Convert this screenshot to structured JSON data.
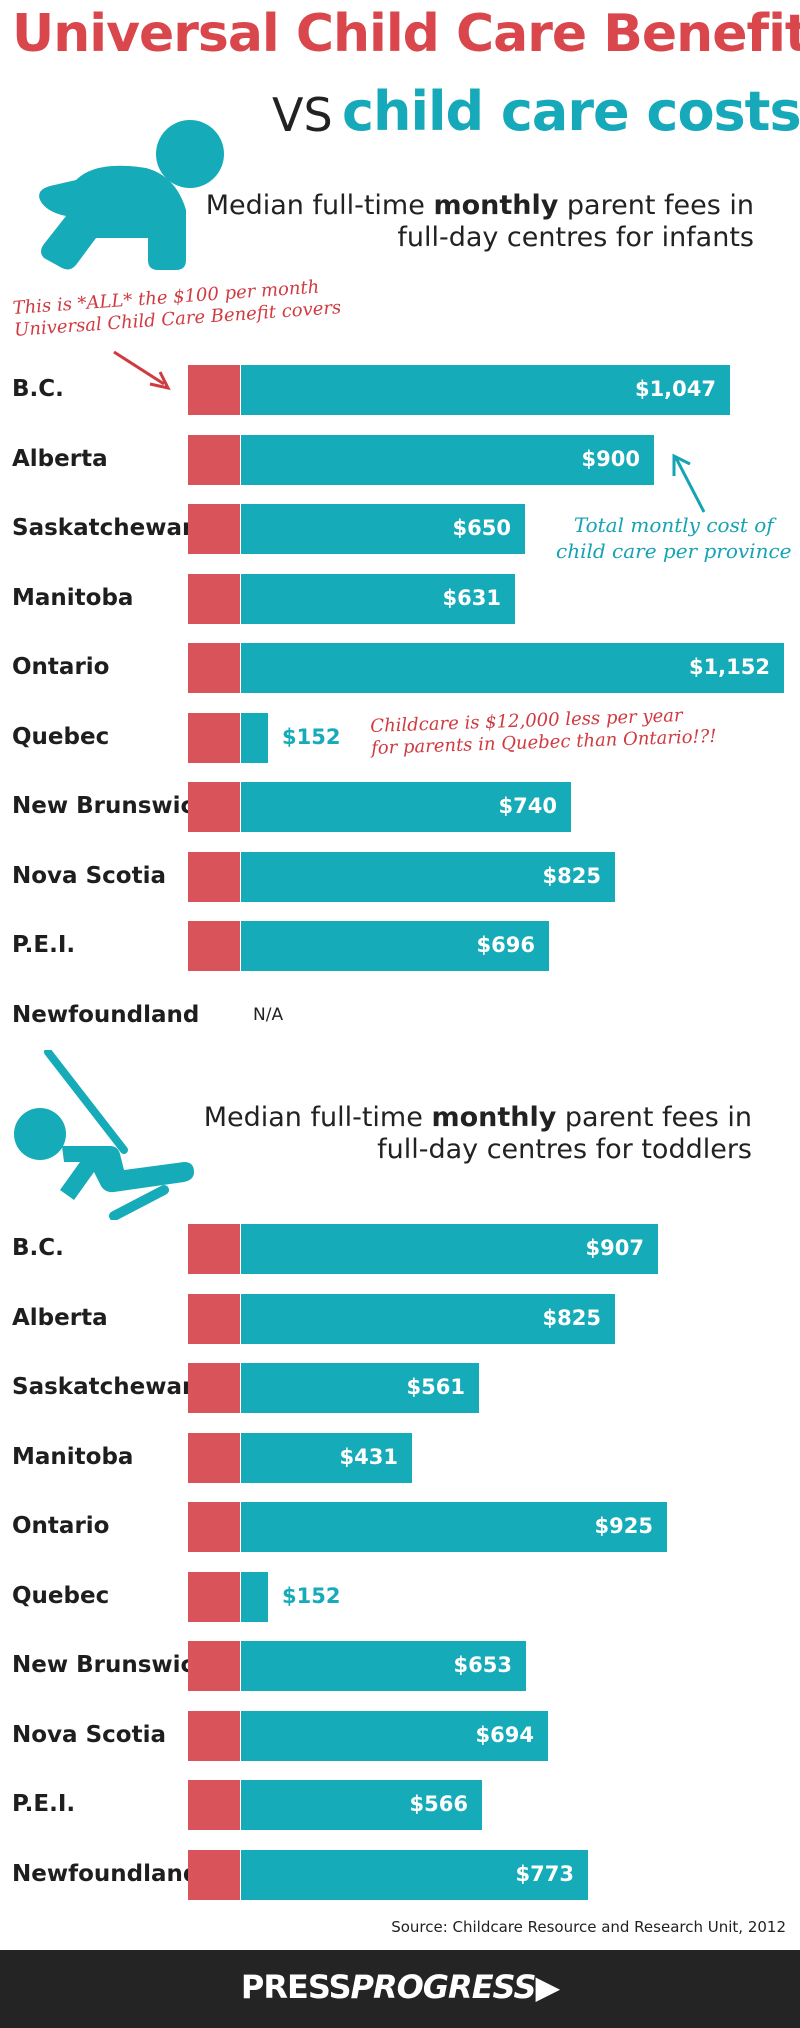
{
  "title": {
    "line1": "Universal Child Care Benefit",
    "vs": "VS",
    "line2": "child care costs"
  },
  "colors": {
    "benefit_red": "#d9535a",
    "cost_teal": "#16abb8",
    "title_red": "#d9474c",
    "footer_bg": "#242424"
  },
  "annotations": {
    "benefit_note_line1": "This is *ALL* the $100 per month",
    "benefit_note_line2": "Universal Child Care Benefit covers",
    "total_note_line1": "Total montly cost of",
    "total_note_line2": "child care per province",
    "quebec_note_line1": "Childcare is $12,000 less per year",
    "quebec_note_line2": "for parents in Quebec than Ontario!?!"
  },
  "icons": [
    "crawling-baby-icon",
    "child-on-swing-icon",
    "arrow-icon"
  ],
  "chart_data": [
    {
      "type": "bar",
      "orientation": "horizontal",
      "stacked": true,
      "title_prefix": "Median full-time",
      "title_bold": "monthly",
      "title_suffix": "parent fees in",
      "title_line2": "full-day centres for infants",
      "categories": [
        "B.C.",
        "Alberta",
        "Saskatchewan",
        "Manitoba",
        "Ontario",
        "Quebec",
        "New Brunswick",
        "Nova Scotia",
        "P.E.I.",
        "Newfoundland"
      ],
      "benefit": 100,
      "values": [
        1047,
        900,
        650,
        631,
        1152,
        152,
        740,
        825,
        696,
        null
      ],
      "labels": [
        "$1,047",
        "$900",
        "$650",
        "$631",
        "$1,152",
        "$152",
        "$740",
        "$825",
        "$696",
        "N/A"
      ],
      "xlim": [
        0,
        1152
      ]
    },
    {
      "type": "bar",
      "orientation": "horizontal",
      "stacked": true,
      "title_prefix": "Median full-time",
      "title_bold": "monthly",
      "title_suffix": "parent fees in",
      "title_line2": "full-day centres for toddlers",
      "categories": [
        "B.C.",
        "Alberta",
        "Saskatchewan",
        "Manitoba",
        "Ontario",
        "Quebec",
        "New Brunswick",
        "Nova Scotia",
        "P.E.I.",
        "Newfoundland"
      ],
      "benefit": 100,
      "values": [
        907,
        825,
        561,
        431,
        925,
        152,
        653,
        694,
        566,
        773
      ],
      "labels": [
        "$907",
        "$825",
        "$561",
        "$431",
        "$925",
        "$152",
        "$653",
        "$694",
        "$566",
        "$773"
      ],
      "xlim": [
        0,
        1152
      ]
    }
  ],
  "source": "Source: Childcare Resource and Research Unit, 2012",
  "footer": {
    "brand_part1": "PRESS",
    "brand_part2": "PROGRESS",
    "brand_arrow": "▶"
  }
}
